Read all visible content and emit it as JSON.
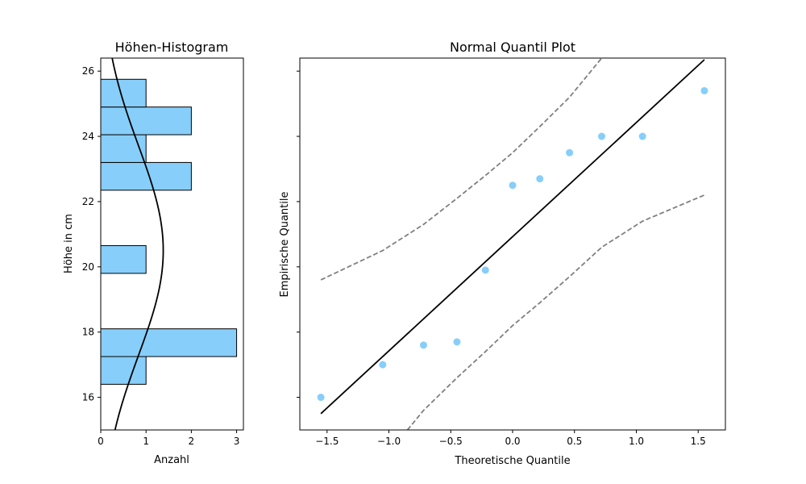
{
  "colors": {
    "bar_fill": "#87cefa",
    "point_fill": "#87cefa",
    "line": "#000000",
    "band": "#808080"
  },
  "chart_data": [
    {
      "type": "bar",
      "orientation": "horizontal",
      "title": "Höhen-Histogram",
      "xlabel": "Anzahl",
      "ylabel": "Höhe in cm",
      "xlim": [
        0,
        3.15
      ],
      "ylim": [
        15,
        26.4
      ],
      "xticks": [
        0,
        1,
        2,
        3
      ],
      "yticks": [
        16,
        18,
        20,
        22,
        24,
        26
      ],
      "bins": [
        {
          "from": 16.4,
          "to": 17.25,
          "count": 1
        },
        {
          "from": 17.25,
          "to": 18.1,
          "count": 3
        },
        {
          "from": 19.8,
          "to": 20.65,
          "count": 1
        },
        {
          "from": 22.35,
          "to": 23.2,
          "count": 2
        },
        {
          "from": 23.2,
          "to": 24.05,
          "count": 1
        },
        {
          "from": 24.05,
          "to": 24.9,
          "count": 2
        },
        {
          "from": 24.9,
          "to": 25.75,
          "count": 1
        }
      ],
      "density_curve": {
        "mean": 20.5,
        "sd": 3.2,
        "scale": 1.38
      }
    },
    {
      "type": "scatter",
      "title": "Normal Quantil Plot",
      "xlabel": "Theoretische Quantile",
      "ylabel": "Empirische Quantile",
      "xlim": [
        -1.72,
        1.72
      ],
      "ylim": [
        15,
        26.4
      ],
      "xticks": [
        -1.5,
        -1.0,
        -0.5,
        0.0,
        0.5,
        1.0,
        1.5
      ],
      "xtick_labels": [
        "−1.5",
        "−1.0",
        "−0.5",
        "0.0",
        "0.5",
        "1.0",
        "1.5"
      ],
      "yticks": [
        16,
        18,
        20,
        22,
        24,
        26
      ],
      "points": {
        "x": [
          -1.55,
          -1.05,
          -0.72,
          -0.45,
          -0.22,
          0.0,
          0.22,
          0.46,
          0.72,
          1.05,
          1.55
        ],
        "y": [
          16.0,
          17.0,
          17.6,
          17.7,
          19.9,
          22.5,
          22.7,
          23.5,
          24.0,
          24.0,
          25.4
        ]
      },
      "reference_line": {
        "x": [
          -1.55,
          1.55
        ],
        "y": [
          15.5,
          26.35
        ]
      },
      "confidence_band_upper": {
        "x": [
          -1.55,
          -1.05,
          -0.72,
          -0.45,
          -0.22,
          0.0,
          0.22,
          0.46,
          0.72
        ],
        "y": [
          19.6,
          20.5,
          21.3,
          22.1,
          22.8,
          23.5,
          24.3,
          25.2,
          26.4
        ]
      },
      "confidence_band_lower": {
        "x": [
          -0.85,
          -0.72,
          -0.45,
          -0.22,
          0.0,
          0.22,
          0.46,
          0.72,
          1.05,
          1.55
        ],
        "y": [
          15.0,
          15.6,
          16.6,
          17.4,
          18.2,
          18.9,
          19.7,
          20.6,
          21.4,
          22.2
        ]
      }
    }
  ]
}
